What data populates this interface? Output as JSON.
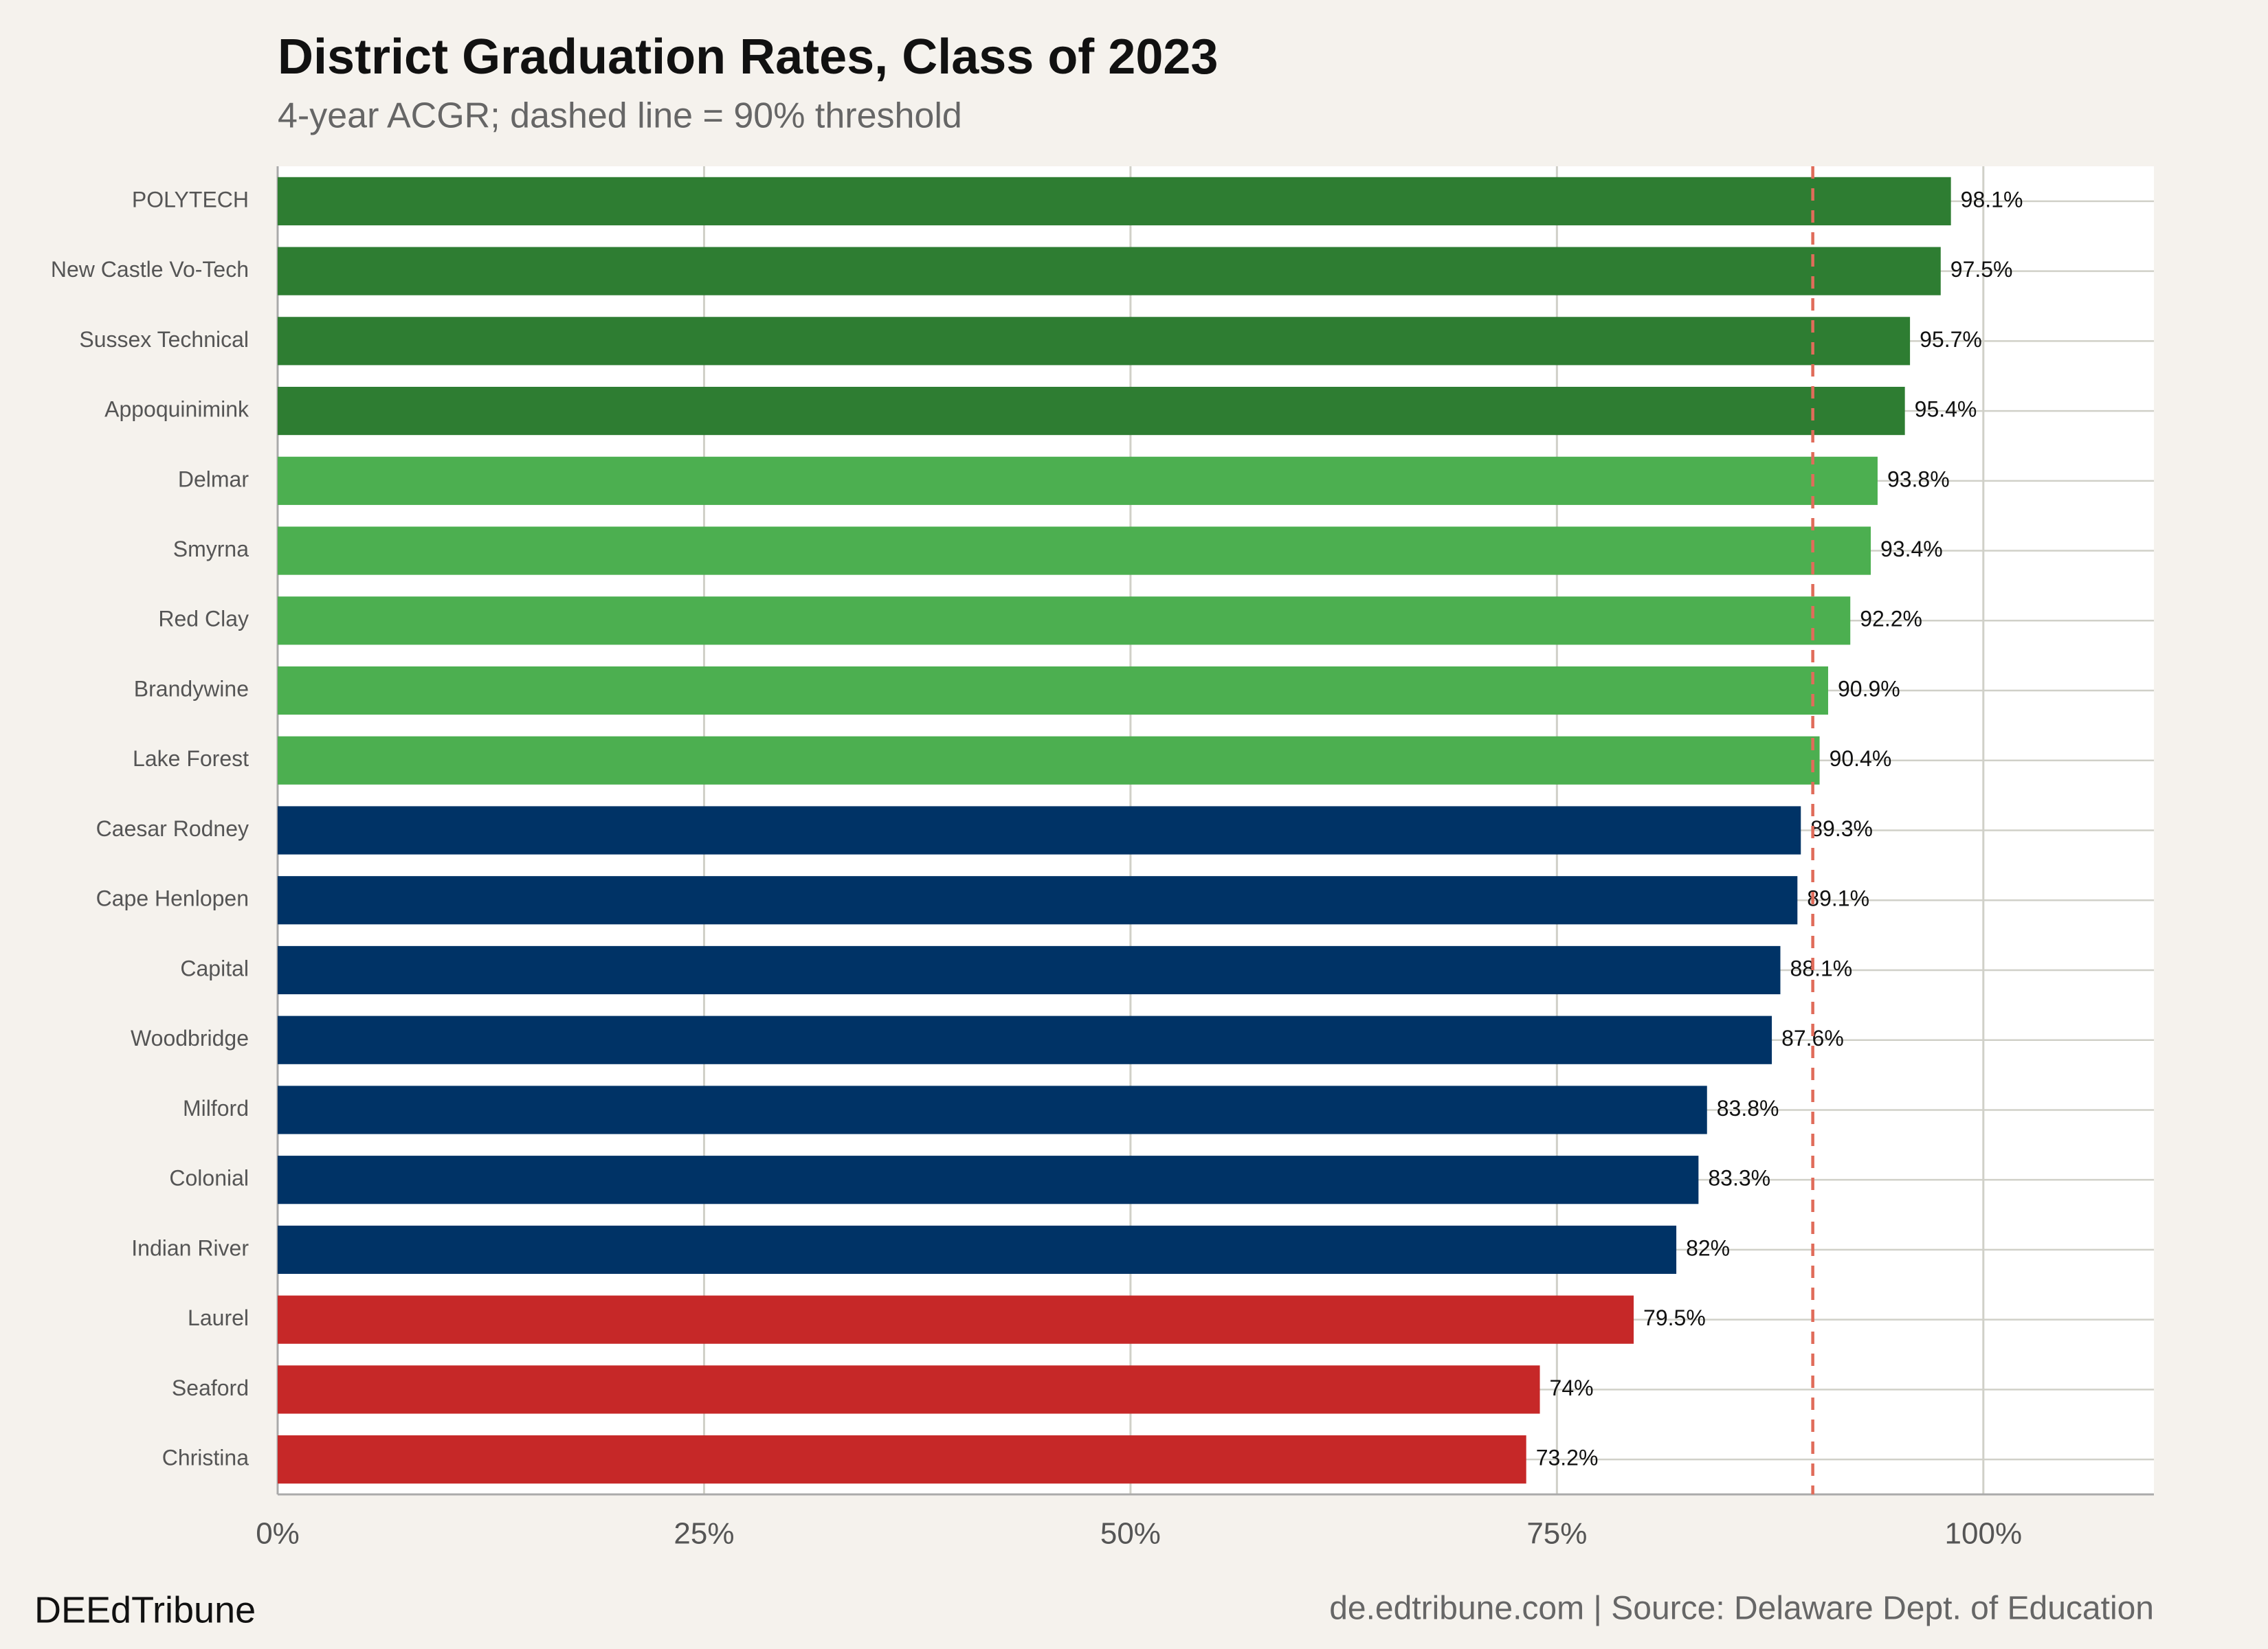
{
  "chart_data": {
    "type": "bar",
    "orientation": "horizontal",
    "title": "District Graduation Rates, Class of 2023",
    "subtitle": "4-year ACGR; dashed line = 90% threshold",
    "categories": [
      "POLYTECH",
      "New Castle Vo-Tech",
      "Sussex Technical",
      "Appoquinimink",
      "Delmar",
      "Smyrna",
      "Red Clay",
      "Brandywine",
      "Lake Forest",
      "Caesar Rodney",
      "Cape Henlopen",
      "Capital",
      "Woodbridge",
      "Milford",
      "Colonial",
      "Indian River",
      "Laurel",
      "Seaford",
      "Christina"
    ],
    "values": [
      98.1,
      97.5,
      95.7,
      95.4,
      93.8,
      93.4,
      92.2,
      90.9,
      90.4,
      89.3,
      89.1,
      88.1,
      87.6,
      83.8,
      83.3,
      82,
      79.5,
      74,
      73.2
    ],
    "value_labels": [
      "98.1%",
      "97.5%",
      "95.7%",
      "95.4%",
      "93.8%",
      "93.4%",
      "92.2%",
      "90.9%",
      "90.4%",
      "89.3%",
      "89.1%",
      "88.1%",
      "87.6%",
      "83.8%",
      "83.3%",
      "82%",
      "79.5%",
      "74%",
      "73.2%"
    ],
    "colors": [
      "#2e7d32",
      "#2e7d32",
      "#2e7d32",
      "#2e7d32",
      "#4caf50",
      "#4caf50",
      "#4caf50",
      "#4caf50",
      "#4caf50",
      "#003366",
      "#003366",
      "#003366",
      "#003366",
      "#003366",
      "#003366",
      "#003366",
      "#c62828",
      "#c62828",
      "#c62828"
    ],
    "xlim": [
      0,
      110
    ],
    "xticks": [
      {
        "value": 0,
        "label": "0%"
      },
      {
        "value": 25,
        "label": "25%"
      },
      {
        "value": 50,
        "label": "50%"
      },
      {
        "value": 75,
        "label": "75%"
      },
      {
        "value": 100,
        "label": "100%"
      }
    ],
    "reference_line": {
      "value": 90,
      "color": "#e06c5a",
      "style": "dashed"
    },
    "grid": true,
    "brand": "DEEdTribune",
    "source": "de.edtribune.com | Source: Delaware Dept. of Education"
  }
}
